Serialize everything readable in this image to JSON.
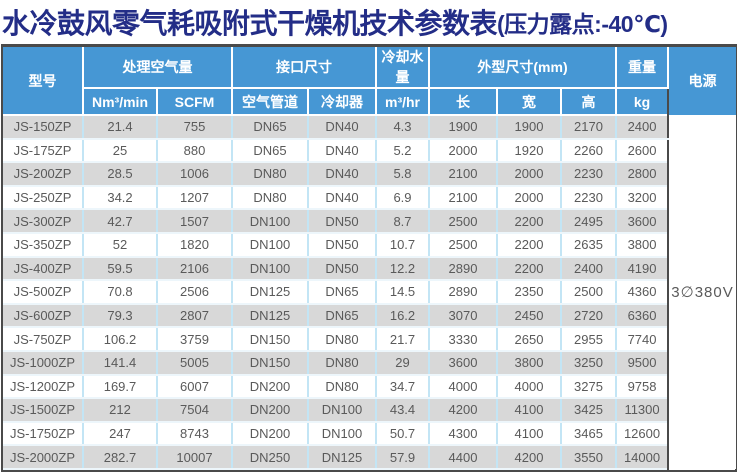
{
  "title": {
    "main": "水冷鼓风零气耗吸附式干燥机技术参数表",
    "suffix": "(压力露点:-40℃)"
  },
  "table": {
    "headers": {
      "model": "型号",
      "air_volume_group": "处理空气量",
      "air_volume_units": [
        "Nm³/min",
        "SCFM"
      ],
      "interface_group": "接口尺寸",
      "interface_subs": [
        "空气管道",
        "冷却器"
      ],
      "cooling_water_group": "冷却水量",
      "cooling_water_unit": "m³/hr",
      "dimensions_group": "外型尺寸(mm)",
      "dimensions_subs": [
        "长",
        "宽",
        "高"
      ],
      "weight_group": "重量",
      "weight_unit": "kg",
      "power": "电源"
    },
    "power_value": "3∅380V",
    "rows": [
      [
        "JS-150ZP",
        "21.4",
        "755",
        "DN65",
        "DN40",
        "4.3",
        "1900",
        "1900",
        "2170",
        "2400"
      ],
      [
        "JS-175ZP",
        "25",
        "880",
        "DN65",
        "DN40",
        "5.2",
        "2000",
        "1920",
        "2260",
        "2600"
      ],
      [
        "JS-200ZP",
        "28.5",
        "1006",
        "DN80",
        "DN40",
        "5.8",
        "2100",
        "2000",
        "2230",
        "2800"
      ],
      [
        "JS-250ZP",
        "34.2",
        "1207",
        "DN80",
        "DN40",
        "6.9",
        "2100",
        "2000",
        "2230",
        "3200"
      ],
      [
        "JS-300ZP",
        "42.7",
        "1507",
        "DN100",
        "DN50",
        "8.7",
        "2500",
        "2200",
        "2495",
        "3600"
      ],
      [
        "JS-350ZP",
        "52",
        "1820",
        "DN100",
        "DN50",
        "10.7",
        "2500",
        "2200",
        "2635",
        "3800"
      ],
      [
        "JS-400ZP",
        "59.5",
        "2106",
        "DN100",
        "DN50",
        "12.2",
        "2890",
        "2200",
        "2400",
        "4190"
      ],
      [
        "JS-500ZP",
        "70.8",
        "2506",
        "DN125",
        "DN65",
        "14.5",
        "2890",
        "2350",
        "2500",
        "4360"
      ],
      [
        "JS-600ZP",
        "79.3",
        "2807",
        "DN125",
        "DN65",
        "16.2",
        "3070",
        "2450",
        "2720",
        "6360"
      ],
      [
        "JS-750ZP",
        "106.2",
        "3759",
        "DN150",
        "DN80",
        "21.7",
        "3330",
        "2650",
        "2955",
        "7740"
      ],
      [
        "JS-1000ZP",
        "141.4",
        "5005",
        "DN150",
        "DN80",
        "29",
        "3600",
        "3800",
        "3250",
        "9500"
      ],
      [
        "JS-1200ZP",
        "169.7",
        "6007",
        "DN200",
        "DN80",
        "34.7",
        "4000",
        "4000",
        "3275",
        "9758"
      ],
      [
        "JS-1500ZP",
        "212",
        "7504",
        "DN200",
        "DN100",
        "43.4",
        "4200",
        "4100",
        "3425",
        "11300"
      ],
      [
        "JS-1750ZP",
        "247",
        "8743",
        "DN200",
        "DN100",
        "50.7",
        "4300",
        "4100",
        "3465",
        "12600"
      ],
      [
        "JS-2000ZP",
        "282.7",
        "10007",
        "DN250",
        "DN125",
        "57.9",
        "4400",
        "4200",
        "3550",
        "14000"
      ]
    ]
  },
  "colors": {
    "title_text": "#232d87",
    "header_bg": "#4697d4",
    "header_text": "#ffffff",
    "row_alt_bg": "#d8d8d8",
    "row_bg": "#ffffff",
    "body_text": "#5a5a5a",
    "cell_separator": "#c3e5f5",
    "outer_border": "#4a4a4a"
  }
}
